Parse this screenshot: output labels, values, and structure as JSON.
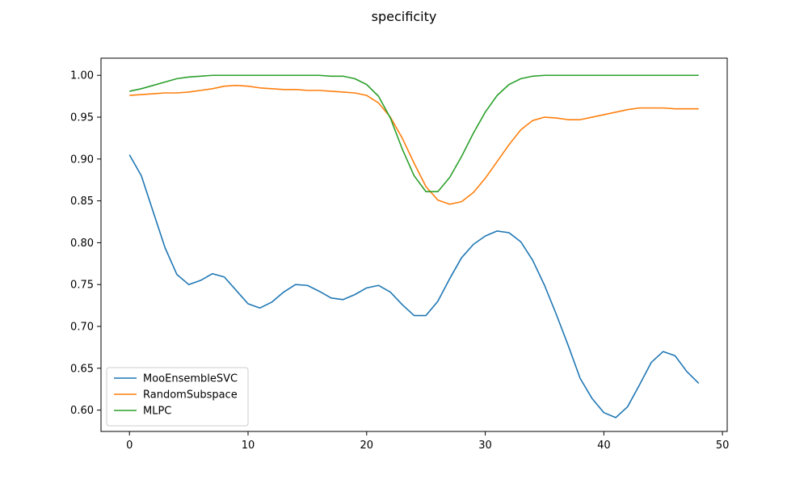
{
  "chart_data": {
    "type": "line",
    "title": "specificity",
    "xlabel": "",
    "ylabel": "",
    "xlim": [
      -2.4,
      50.4
    ],
    "ylim": [
      0.5745,
      1.0205
    ],
    "xticks": [
      0,
      10,
      20,
      30,
      40,
      50
    ],
    "xtick_labels": [
      "0",
      "10",
      "20",
      "30",
      "40",
      "50"
    ],
    "yticks": [
      0.6,
      0.65,
      0.7,
      0.75,
      0.8,
      0.85,
      0.9,
      0.95,
      1.0
    ],
    "ytick_labels": [
      "0.60",
      "0.65",
      "0.70",
      "0.75",
      "0.80",
      "0.85",
      "0.90",
      "0.95",
      "1.00"
    ],
    "grid": false,
    "legend_position": "lower-left",
    "x": [
      0,
      1,
      2,
      3,
      4,
      5,
      6,
      7,
      8,
      9,
      10,
      11,
      12,
      13,
      14,
      15,
      16,
      17,
      18,
      19,
      20,
      21,
      22,
      23,
      24,
      25,
      26,
      27,
      28,
      29,
      30,
      31,
      32,
      33,
      34,
      35,
      36,
      37,
      38,
      39,
      40,
      41,
      42,
      43,
      44,
      45,
      46,
      47,
      48
    ],
    "series": [
      {
        "name": "MooEnsembleSVC",
        "color": "#1f77b4",
        "values": [
          0.905,
          0.88,
          0.837,
          0.794,
          0.762,
          0.75,
          0.755,
          0.763,
          0.759,
          0.743,
          0.727,
          0.722,
          0.729,
          0.741,
          0.75,
          0.749,
          0.742,
          0.734,
          0.732,
          0.738,
          0.746,
          0.749,
          0.741,
          0.726,
          0.713,
          0.713,
          0.73,
          0.757,
          0.782,
          0.798,
          0.808,
          0.814,
          0.812,
          0.801,
          0.779,
          0.749,
          0.714,
          0.677,
          0.638,
          0.614,
          0.597,
          0.591,
          0.604,
          0.63,
          0.657,
          0.67,
          0.665,
          0.646,
          0.632
        ]
      },
      {
        "name": "RandomSubspace",
        "color": "#ff7f0e",
        "values": [
          0.976,
          0.977,
          0.978,
          0.979,
          0.979,
          0.98,
          0.982,
          0.984,
          0.987,
          0.988,
          0.987,
          0.985,
          0.984,
          0.983,
          0.983,
          0.982,
          0.982,
          0.981,
          0.98,
          0.979,
          0.976,
          0.967,
          0.95,
          0.925,
          0.895,
          0.867,
          0.851,
          0.846,
          0.849,
          0.86,
          0.877,
          0.897,
          0.917,
          0.935,
          0.946,
          0.95,
          0.949,
          0.947,
          0.947,
          0.95,
          0.953,
          0.956,
          0.959,
          0.961,
          0.961,
          0.961,
          0.96,
          0.96,
          0.96
        ]
      },
      {
        "name": "MLPC",
        "color": "#2ca02c",
        "values": [
          0.981,
          0.984,
          0.988,
          0.992,
          0.996,
          0.998,
          0.999,
          1.0,
          1.0,
          1.0,
          1.0,
          1.0,
          1.0,
          1.0,
          1.0,
          1.0,
          1.0,
          0.999,
          0.999,
          0.996,
          0.989,
          0.975,
          0.949,
          0.912,
          0.88,
          0.861,
          0.861,
          0.878,
          0.903,
          0.931,
          0.956,
          0.976,
          0.989,
          0.996,
          0.999,
          1.0,
          1.0,
          1.0,
          1.0,
          1.0,
          1.0,
          1.0,
          1.0,
          1.0,
          1.0,
          1.0,
          1.0,
          1.0,
          1.0
        ]
      }
    ]
  }
}
